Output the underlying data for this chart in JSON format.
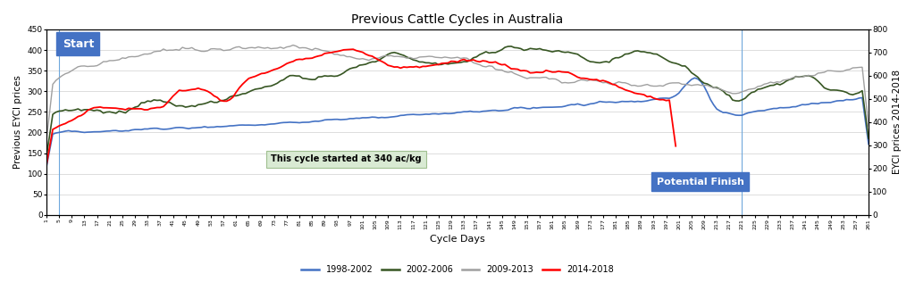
{
  "title": "Previous Cattle Cycles in Australia",
  "xlabel": "Cycle Days",
  "ylabel_left": "Previous EYCI prices",
  "ylabel_right": "EYCI prices 2014-2018",
  "xlim": [
    1,
    261
  ],
  "ylim_left": [
    0,
    450
  ],
  "ylim_right": [
    0,
    800
  ],
  "yticks_left": [
    0,
    50,
    100,
    150,
    200,
    250,
    300,
    350,
    400,
    450
  ],
  "yticks_right": [
    0,
    100,
    200,
    300,
    400,
    500,
    600,
    700,
    800
  ],
  "xticks": [
    1,
    5,
    9,
    13,
    17,
    21,
    25,
    29,
    33,
    37,
    41,
    45,
    49,
    53,
    57,
    61,
    65,
    69,
    73,
    77,
    81,
    85,
    89,
    93,
    97,
    101,
    105,
    109,
    113,
    117,
    121,
    125,
    129,
    133,
    137,
    141,
    145,
    149,
    153,
    157,
    161,
    165,
    169,
    173,
    177,
    181,
    185,
    189,
    193,
    197,
    201,
    205,
    209,
    213,
    217,
    221,
    225,
    229,
    233,
    237,
    241,
    245,
    249,
    253,
    257,
    261
  ],
  "line_colors": {
    "1998-2002": "#4472C4",
    "2002-2006": "#375623",
    "2009-2013": "#A0A0A0",
    "2014-2018": "#FF0000"
  },
  "legend_labels": [
    "1998-2002",
    "2002-2006",
    "2009-2013",
    "2014-2018"
  ],
  "vline1_x": 5,
  "vline2_x": 221,
  "background_color": "#ffffff",
  "grid_color": "#d0d0d0",
  "start_text": "Start",
  "annotation_text": "This cycle started at 340 ac/kg",
  "finish_text": "Potential Finish"
}
